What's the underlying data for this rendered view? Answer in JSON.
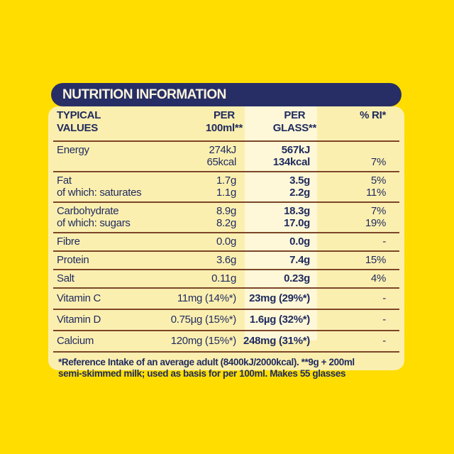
{
  "colors": {
    "bg-yellow": "#FFDD00",
    "panel-cream": "#FBEFB0",
    "glass-highlight": "#FEF8D8",
    "navy": "#272E66",
    "text-navy": "#1F2A5E",
    "bar-text": "#FAF3DC",
    "divider": "#7C4528"
  },
  "header_bar": {
    "title": "NUTRITION INFORMATION"
  },
  "table": {
    "header": {
      "typical_line1": "TYPICAL",
      "typical_line2": "VALUES",
      "per100_line1": "PER",
      "per100_line2": "100ml**",
      "glass_line1": "PER",
      "glass_line2": "GLASS**",
      "ri": "% RI*"
    },
    "rows": [
      {
        "name": "energy",
        "lines": [
          {
            "label": "Energy",
            "per100": "274kJ",
            "glass": "567kJ",
            "ri": ""
          },
          {
            "label": "",
            "per100": "65kcal",
            "glass": "134kcal",
            "ri": "7%"
          }
        ]
      },
      {
        "name": "fat",
        "lines": [
          {
            "label": "Fat",
            "per100": "1.7g",
            "glass": "3.5g",
            "ri": "5%"
          },
          {
            "label": "of which: saturates",
            "per100": "1.1g",
            "glass": "2.2g",
            "ri": "11%"
          }
        ]
      },
      {
        "name": "carbohydrate",
        "lines": [
          {
            "label": "Carbohydrate",
            "per100": "8.9g",
            "glass": "18.3g",
            "ri": "7%"
          },
          {
            "label": "of which: sugars",
            "per100": "8.2g",
            "glass": "17.0g",
            "ri": "19%"
          }
        ]
      },
      {
        "name": "fibre",
        "lines": [
          {
            "label": "Fibre",
            "per100": "0.0g",
            "glass": "0.0g",
            "ri": "-"
          }
        ]
      },
      {
        "name": "protein",
        "lines": [
          {
            "label": "Protein",
            "per100": "3.6g",
            "glass": "7.4g",
            "ri": "15%"
          }
        ]
      },
      {
        "name": "salt",
        "lines": [
          {
            "label": "Salt",
            "per100": "0.11g",
            "glass": "0.23g",
            "ri": "4%"
          }
        ]
      },
      {
        "name": "vitamin-c",
        "tall": true,
        "lines": [
          {
            "label": "Vitamin C",
            "per100": "11mg (14%*)",
            "glass": "23mg (29%*)",
            "ri": "-"
          }
        ]
      },
      {
        "name": "vitamin-d",
        "tall": true,
        "lines": [
          {
            "label": "Vitamin D",
            "per100": "0.75µg (15%*)",
            "glass": "1.6µg (32%*)",
            "ri": "-"
          }
        ]
      },
      {
        "name": "calcium",
        "tall": true,
        "lines": [
          {
            "label": "Calcium",
            "per100": "120mg (15%*)",
            "glass": "248mg (31%*)",
            "ri": "-"
          }
        ]
      }
    ]
  },
  "footnote": {
    "line1": "*Reference Intake of an average adult (8400kJ/2000kcal). **9g + 200ml",
    "line2": "semi-skimmed milk; used as basis for per 100ml. Makes 55 glasses"
  }
}
